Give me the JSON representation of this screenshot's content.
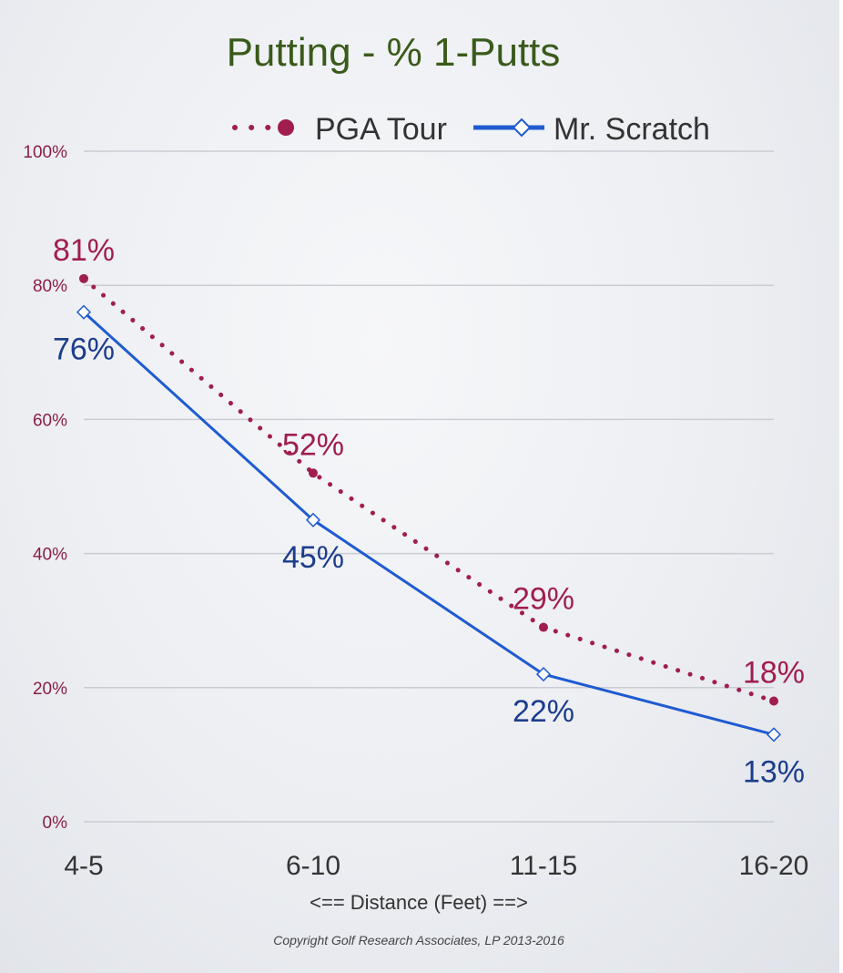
{
  "chart_data": {
    "type": "line",
    "title": "Putting - % 1-Putts",
    "categories": [
      "4-5",
      "6-10",
      "11-15",
      "16-20"
    ],
    "xlabel": "<== Distance (Feet) ==>",
    "ylabel": "",
    "ylim": [
      0,
      100
    ],
    "yticks": [
      "0%",
      "20%",
      "40%",
      "60%",
      "80%",
      "100%"
    ],
    "ytick_values": [
      0,
      20,
      40,
      60,
      80,
      100
    ],
    "grid": true,
    "legend_position": "top",
    "series": [
      {
        "name": "PGA Tour",
        "values": [
          81,
          52,
          29,
          18
        ],
        "labels": [
          "81%",
          "52%",
          "29%",
          "18%"
        ],
        "color": "#a01e4f",
        "style": "dotted",
        "marker": "circle"
      },
      {
        "name": "Mr. Scratch",
        "values": [
          76,
          45,
          22,
          13
        ],
        "labels": [
          "76%",
          "45%",
          "22%",
          "13%"
        ],
        "color": "#1f5bd1",
        "style": "solid",
        "marker": "diamond"
      }
    ],
    "copyright": "Copyright Golf Research Associates, LP 2013-2016"
  },
  "colors": {
    "title": "#3a5a1a",
    "grid": "#c9ccd3",
    "pga": "#a01e4f",
    "scratch": "#1f5bd1",
    "scratch_label": "#1c3d8c",
    "ytick": "#8a1f45"
  }
}
